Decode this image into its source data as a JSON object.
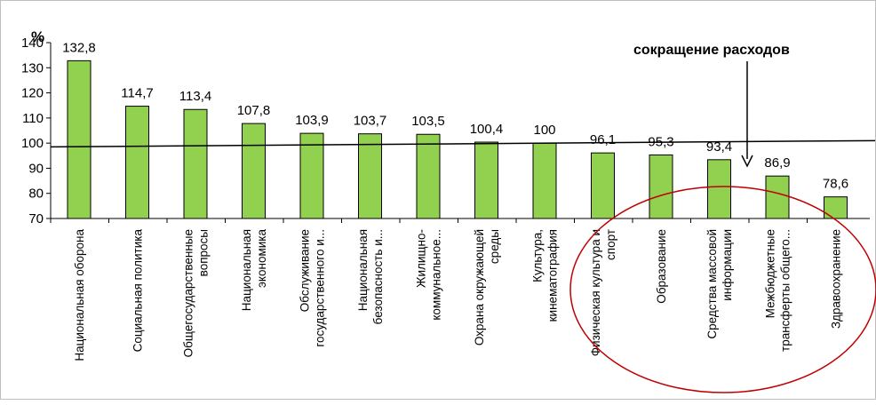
{
  "chart_data": {
    "type": "bar",
    "ylabel": "%",
    "ylim": [
      70,
      140
    ],
    "yticks": [
      "70",
      "80",
      "90",
      "100",
      "110",
      "120",
      "130",
      "140"
    ],
    "grid": false,
    "legend": "none",
    "bar_color": "#92d050",
    "categories": [
      [
        "Национальная оборона"
      ],
      [
        "Социальная политика"
      ],
      [
        "Общегосударственные",
        "вопросы"
      ],
      [
        "Национальная",
        "экономика"
      ],
      [
        "Обслуживание",
        "государственного и..."
      ],
      [
        "Национальная",
        "безопасность и..."
      ],
      [
        "Жилищно-",
        "коммунальное..."
      ],
      [
        "Охрана окружающей",
        "среды"
      ],
      [
        "Культура,",
        "кинематография"
      ],
      [
        "Физическая культура и",
        "спорт"
      ],
      [
        "Образование"
      ],
      [
        "Средства массовой",
        "информации"
      ],
      [
        "Межбюджетные",
        "трансферты общего..."
      ],
      [
        "Здравоохранение"
      ]
    ],
    "values": [
      132.8,
      114.7,
      113.4,
      107.8,
      103.9,
      103.7,
      103.5,
      100.4,
      100,
      96.1,
      95.3,
      93.4,
      86.9,
      78.6
    ],
    "data_labels": [
      "132,8",
      "114,7",
      "113,4",
      "107,8",
      "103,9",
      "103,7",
      "103,5",
      "100,4",
      "100",
      "96,1",
      "95,3",
      "93,4",
      "86,9",
      "78,6"
    ],
    "annotation": "сокращение расходов",
    "trend_line": {
      "start_y": 98.5,
      "end_y": 101.0
    }
  }
}
